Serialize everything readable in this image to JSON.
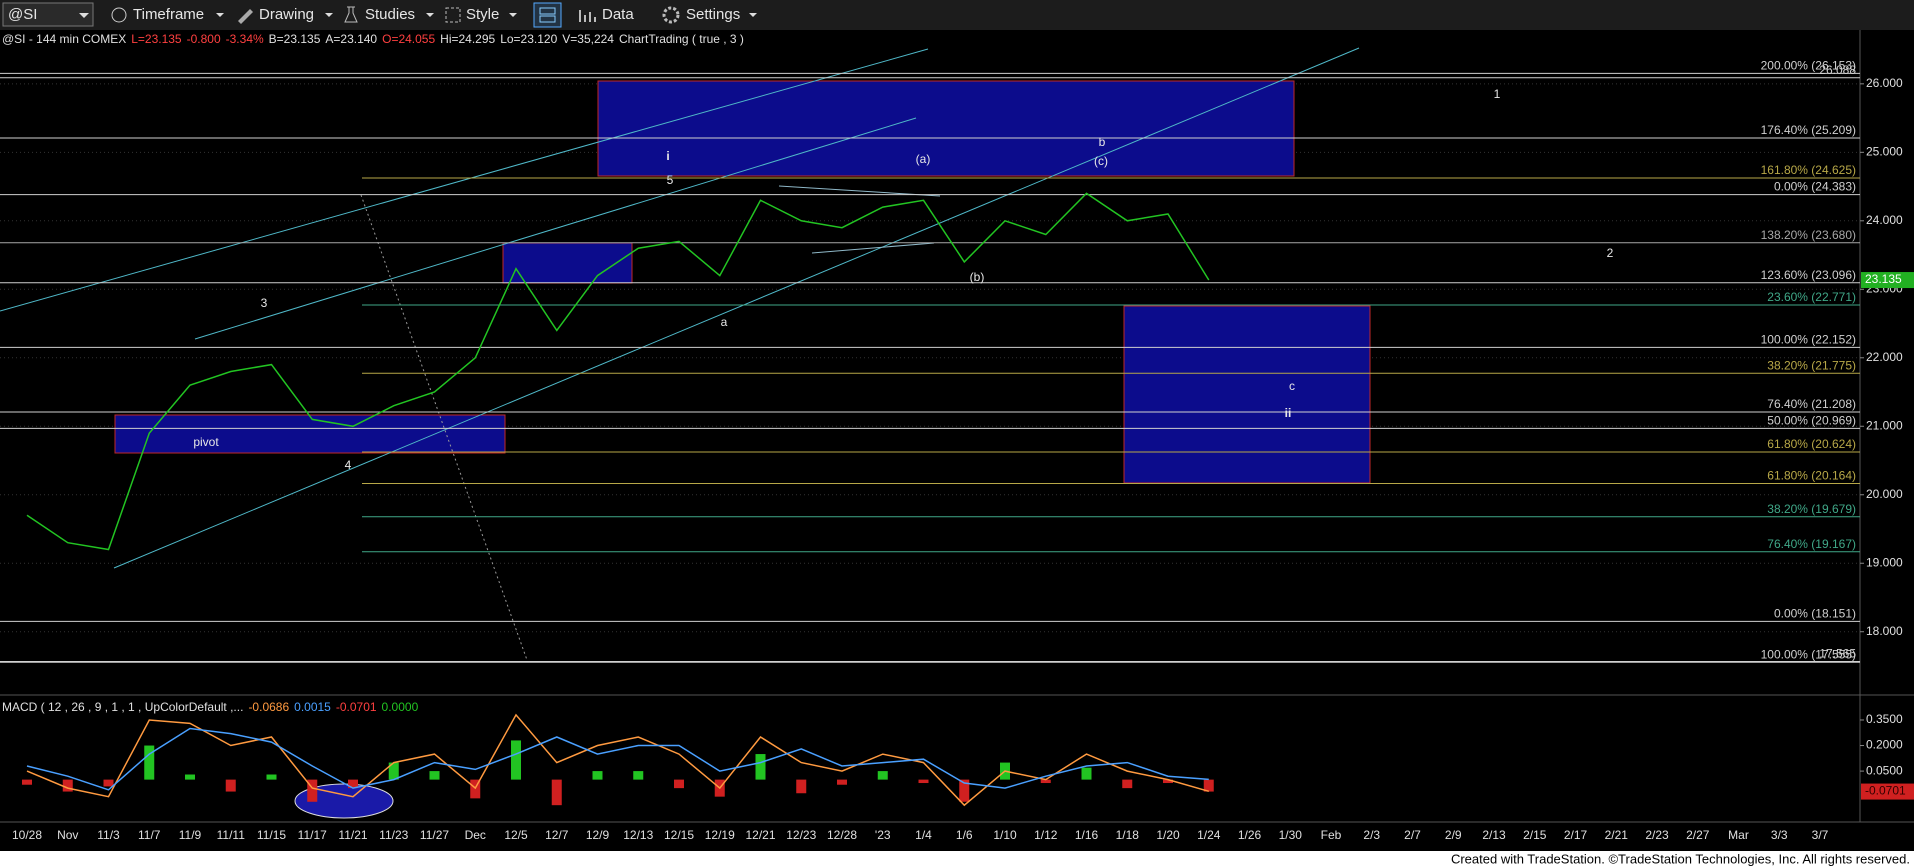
{
  "toolbar": {
    "symbol": "@SI",
    "items": [
      "Timeframe",
      "Drawing",
      "Studies",
      "Style",
      "Data",
      "Settings"
    ]
  },
  "chart_data": [
    {
      "type": "line",
      "header": [
        {
          "text": "@SI - 144 min  COMEX",
          "color": "#e0e0e0"
        },
        {
          "text": "L=23.135",
          "color": "#ff4040"
        },
        {
          "text": "-0.800",
          "color": "#ff4040"
        },
        {
          "text": "-3.34%",
          "color": "#ff4040"
        },
        {
          "text": "B=23.135",
          "color": "#e0e0e0"
        },
        {
          "text": "A=23.140",
          "color": "#e0e0e0"
        },
        {
          "text": "O=24.055",
          "color": "#ff4040"
        },
        {
          "text": "Hi=24.295",
          "color": "#e0e0e0"
        },
        {
          "text": "Lo=23.120",
          "color": "#e0e0e0"
        },
        {
          "text": "V=35,224",
          "color": "#e0e0e0"
        },
        {
          "text": "ChartTrading ( true , 3 )",
          "color": "#e0e0e0"
        }
      ],
      "categories": [
        "10/28",
        "Nov",
        "11/3",
        "11/7",
        "11/9",
        "11/11",
        "11/15",
        "11/17",
        "11/21",
        "11/23",
        "11/27",
        "Dec",
        "12/5",
        "12/7",
        "12/9",
        "12/13",
        "12/15",
        "12/19",
        "12/21",
        "12/23",
        "12/28",
        "'23",
        "1/4",
        "1/6",
        "1/10",
        "1/12",
        "1/16",
        "1/18",
        "1/20",
        "1/24",
        "1/26",
        "1/30",
        "Feb",
        "2/3",
        "2/7",
        "2/9",
        "2/13",
        "2/15",
        "2/17",
        "2/21",
        "2/23",
        "2/27",
        "Mar",
        "3/3",
        "3/7"
      ],
      "values": [
        19.7,
        19.3,
        19.2,
        20.9,
        21.6,
        21.8,
        21.9,
        21.1,
        21.0,
        21.3,
        21.5,
        22.0,
        23.3,
        22.4,
        23.2,
        23.6,
        23.7,
        23.2,
        24.3,
        24.0,
        23.9,
        24.2,
        24.3,
        23.4,
        24.0,
        23.8,
        24.4,
        24.0,
        24.1,
        23.135,
        null,
        null,
        null,
        null,
        null,
        null,
        null,
        null,
        null,
        null,
        null,
        null,
        null,
        null,
        null
      ],
      "color": "#22c422",
      "ylim": [
        17.12,
        26.64
      ],
      "yticks": [
        {
          "value": 18,
          "label": "18.000"
        },
        {
          "value": 19,
          "label": "19.000"
        },
        {
          "value": 20,
          "label": "20.000"
        },
        {
          "value": 21,
          "label": "21.000"
        },
        {
          "value": 22,
          "label": "22.000"
        },
        {
          "value": 23,
          "label": "23.000"
        },
        {
          "value": 24,
          "label": "24.000"
        },
        {
          "value": 25,
          "label": "25.000"
        },
        {
          "value": 26,
          "label": "26.000"
        }
      ],
      "grid": true,
      "last_value": {
        "value": 23.135,
        "label": "23.135"
      },
      "levels": [
        {
          "label": "200.00% (26.153)",
          "value": 26.153,
          "color": "#d0d0d0"
        },
        {
          "label": "26.088",
          "value": 26.088,
          "color": "#d0d0d0"
        },
        {
          "label": "176.40% (25.209)",
          "value": 25.209,
          "color": "#d0d0d0"
        },
        {
          "label": "161.80% (24.625)",
          "value": 24.625,
          "color": "#b8a848"
        },
        {
          "label": "0.00% (24.383)",
          "value": 24.383,
          "color": "#d0d0d0"
        },
        {
          "label": "138.20% (23.680)",
          "value": 23.68,
          "color": "#a8a8a8"
        },
        {
          "label": "123.60% (23.096)",
          "value": 23.096,
          "color": "#d0d0d0"
        },
        {
          "label": "23.60% (22.771)",
          "value": 22.771,
          "color": "#40a888"
        },
        {
          "label": "100.00% (22.152)",
          "value": 22.152,
          "color": "#d0d0d0"
        },
        {
          "label": "38.20% (21.775)",
          "value": 21.775,
          "color": "#b8a848"
        },
        {
          "label": "76.40% (21.208)",
          "value": 21.208,
          "color": "#d0d0d0"
        },
        {
          "label": "50.00% (20.969)",
          "value": 20.969,
          "color": "#d0d0d0"
        },
        {
          "label": "61.80% (20.624)",
          "value": 20.624,
          "color": "#b8a848"
        },
        {
          "label": "61.80% (20.164)",
          "value": 20.164,
          "color": "#b8a848"
        },
        {
          "label": "38.20% (19.679)",
          "value": 19.679,
          "color": "#40a888"
        },
        {
          "label": "76.40% (19.167)",
          "value": 19.167,
          "color": "#40a888"
        },
        {
          "label": "0.00% (18.151)",
          "value": 18.151,
          "color": "#d0d0d0"
        },
        {
          "label": "100.00% (17.555)",
          "value": 17.555,
          "color": "#d0d0d0"
        },
        {
          "label": "17.565",
          "value": 17.565,
          "color": "#d0d0d0"
        }
      ],
      "annotations": [
        "i",
        "5",
        "(a)",
        "b",
        "(c)",
        "1",
        "2",
        "3",
        "4",
        "pivot",
        "a",
        "(b)",
        "c",
        "ii"
      ]
    },
    {
      "type": "macd",
      "header": [
        {
          "text": "MACD ( 12 , 26 , 9 , 1 , 1 , UpColorDefault ,...",
          "color": "#e0e0e0"
        },
        {
          "text": "-0.0686",
          "color": "#ff9a40"
        },
        {
          "text": "0.0015",
          "color": "#4aa0ff"
        },
        {
          "text": "-0.0701",
          "color": "#ff4040"
        },
        {
          "text": "0.0000",
          "color": "#22c422"
        }
      ],
      "ylim": [
        -0.237,
        0.479
      ],
      "yticks": [
        {
          "value": 0.05,
          "label": "0.0500"
        },
        {
          "value": 0.2,
          "label": "0.2000"
        },
        {
          "value": 0.35,
          "label": "0.3500"
        }
      ],
      "series": [
        {
          "color": "#ff9a40",
          "values": [
            0.05,
            -0.05,
            -0.1,
            0.35,
            0.33,
            0.2,
            0.25,
            -0.05,
            -0.1,
            0.1,
            0.15,
            -0.05,
            0.38,
            0.1,
            0.2,
            0.25,
            0.15,
            -0.05,
            0.25,
            0.1,
            0.05,
            0.15,
            0.1,
            -0.15,
            0.05,
            0.0,
            0.15,
            0.05,
            0.0,
            -0.0686,
            null,
            null,
            null,
            null,
            null,
            null,
            null,
            null,
            null,
            null,
            null,
            null,
            null,
            null,
            null
          ]
        },
        {
          "color": "#4aa0ff",
          "values": [
            0.08,
            0.02,
            -0.06,
            0.15,
            0.3,
            0.27,
            0.22,
            0.08,
            -0.05,
            0.0,
            0.1,
            0.06,
            0.15,
            0.25,
            0.15,
            0.2,
            0.2,
            0.05,
            0.1,
            0.18,
            0.08,
            0.1,
            0.12,
            -0.02,
            -0.05,
            0.02,
            0.08,
            0.1,
            0.02,
            0.0015,
            null,
            null,
            null,
            null,
            null,
            null,
            null,
            null,
            null,
            null,
            null,
            null,
            null,
            null,
            null
          ]
        }
      ],
      "histogram": {
        "up_color": "#22c422",
        "down_color": "#d02020",
        "values": [
          -0.03,
          -0.07,
          -0.04,
          0.2,
          0.03,
          -0.07,
          0.03,
          -0.13,
          -0.05,
          0.1,
          0.05,
          -0.11,
          0.23,
          -0.15,
          0.05,
          0.05,
          -0.05,
          -0.1,
          0.15,
          -0.08,
          -0.03,
          0.05,
          -0.02,
          -0.13,
          0.1,
          -0.02,
          0.07,
          -0.05,
          -0.02,
          -0.0701,
          null,
          null,
          null,
          null,
          null,
          null,
          null,
          null,
          null,
          null,
          null,
          null,
          null,
          null,
          null
        ]
      },
      "last_value": {
        "value": -0.0701,
        "label": "-0.0701"
      }
    }
  ],
  "footer": "Created with TradeStation. ©TradeStation Technologies, Inc. All rights reserved."
}
